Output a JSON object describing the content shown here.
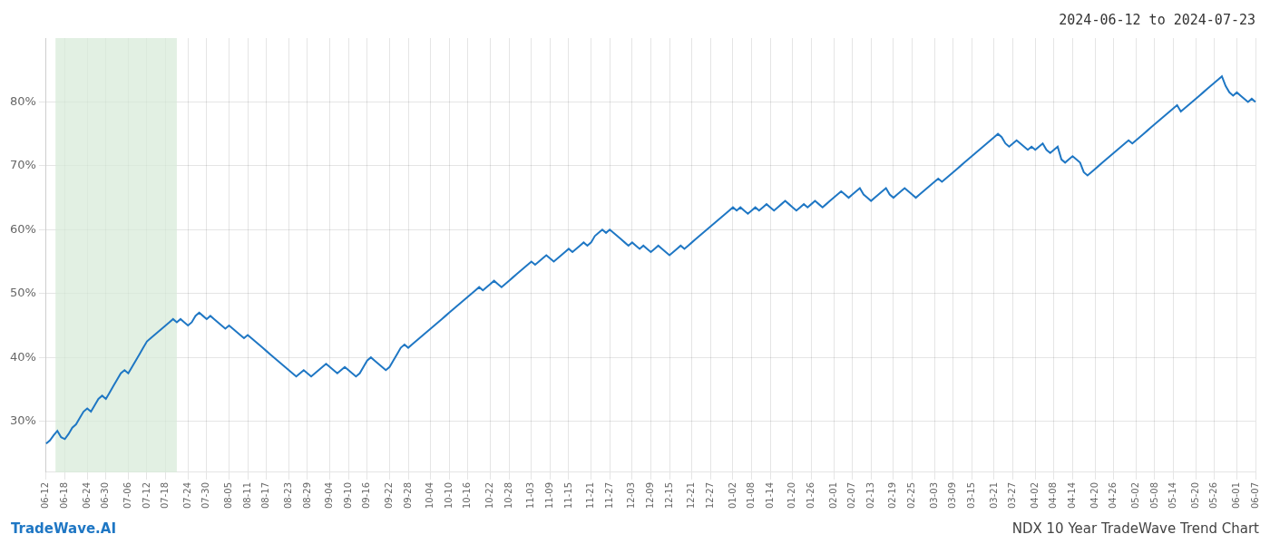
{
  "chart_data": {
    "type": "line",
    "title": "2024-06-12 to 2024-07-23",
    "annotations": [
      {
        "text": "TradeWave.AI",
        "color": "#1f77c4"
      },
      {
        "text": "NDX 10 Year TradeWave Trend Chart",
        "color": "#444444"
      }
    ],
    "color": "#1f77c4",
    "grid": true,
    "ylim": [
      22,
      90
    ],
    "yticks": [
      {
        "value": 30,
        "label": "30%"
      },
      {
        "value": 40,
        "label": "40%"
      },
      {
        "value": 50,
        "label": "50%"
      },
      {
        "value": 60,
        "label": "60%"
      },
      {
        "value": 70,
        "label": "70%"
      },
      {
        "value": 80,
        "label": "80%"
      }
    ],
    "shade": {
      "from": "06-18",
      "to": "07-18",
      "color": "#d6ead7"
    },
    "categories": [
      "06-12",
      null,
      null,
      null,
      null,
      "06-18",
      null,
      null,
      null,
      null,
      null,
      "06-24",
      null,
      null,
      null,
      null,
      "06-30",
      null,
      null,
      null,
      null,
      null,
      "07-06",
      null,
      null,
      null,
      null,
      "07-12",
      null,
      null,
      null,
      null,
      "07-18",
      null,
      null,
      null,
      null,
      null,
      "07-24",
      null,
      null,
      null,
      null,
      "07-30",
      null,
      null,
      null,
      null,
      null,
      "08-05",
      null,
      null,
      null,
      null,
      "08-11",
      null,
      null,
      null,
      null,
      "08-17",
      null,
      null,
      null,
      null,
      null,
      "08-23",
      null,
      null,
      null,
      null,
      "08-29",
      null,
      null,
      null,
      null,
      null,
      "09-04",
      null,
      null,
      null,
      null,
      "09-10",
      null,
      null,
      null,
      null,
      "09-16",
      null,
      null,
      null,
      null,
      null,
      "09-22",
      null,
      null,
      null,
      null,
      "09-28",
      null,
      null,
      null,
      null,
      null,
      "10-04",
      null,
      null,
      null,
      null,
      "10-10",
      null,
      null,
      null,
      null,
      "10-16",
      null,
      null,
      null,
      null,
      null,
      "10-22",
      null,
      null,
      null,
      null,
      "10-28",
      null,
      null,
      null,
      null,
      null,
      "11-03",
      null,
      null,
      null,
      null,
      "11-09",
      null,
      null,
      null,
      null,
      "11-15",
      null,
      null,
      null,
      null,
      null,
      "11-21",
      null,
      null,
      null,
      null,
      "11-27",
      null,
      null,
      null,
      null,
      null,
      "12-03",
      null,
      null,
      null,
      null,
      "12-09",
      null,
      null,
      null,
      null,
      "12-15",
      null,
      null,
      null,
      null,
      null,
      "12-21",
      null,
      null,
      null,
      null,
      "12-27",
      null,
      null,
      null,
      null,
      null,
      "01-02",
      null,
      null,
      null,
      null,
      "01-08",
      null,
      null,
      null,
      null,
      "01-14",
      null,
      null,
      null,
      null,
      null,
      "01-20",
      null,
      null,
      null,
      null,
      "01-26",
      null,
      null,
      null,
      null,
      null,
      "02-01",
      null,
      null,
      null,
      null,
      "02-07",
      null,
      null,
      null,
      null,
      "02-13",
      null,
      null,
      null,
      null,
      null,
      "02-19",
      null,
      null,
      null,
      null,
      "02-25",
      null,
      null,
      null,
      null,
      null,
      "03-03",
      null,
      null,
      null,
      null,
      "03-09",
      null,
      null,
      null,
      null,
      "03-15",
      null,
      null,
      null,
      null,
      null,
      "03-21",
      null,
      null,
      null,
      null,
      "03-27",
      null,
      null,
      null,
      null,
      null,
      "04-02",
      null,
      null,
      null,
      null,
      "04-08",
      null,
      null,
      null,
      null,
      "04-14",
      null,
      null,
      null,
      null,
      null,
      "04-20",
      null,
      null,
      null,
      null,
      "04-26",
      null,
      null,
      null,
      null,
      null,
      "05-02",
      null,
      null,
      null,
      null,
      "05-08",
      null,
      null,
      null,
      null,
      "05-14",
      null,
      null,
      null,
      null,
      null,
      "05-20",
      null,
      null,
      null,
      null,
      "05-26",
      null,
      null,
      null,
      null,
      null,
      "06-01",
      null,
      null,
      null,
      null,
      "06-07"
    ],
    "values": [
      26.5,
      27.0,
      27.8,
      28.5,
      27.5,
      27.2,
      28.0,
      29.0,
      29.5,
      30.5,
      31.5,
      32.0,
      31.5,
      32.5,
      33.5,
      34.0,
      33.5,
      34.5,
      35.5,
      36.5,
      37.5,
      38.0,
      37.5,
      38.5,
      39.5,
      40.5,
      41.5,
      42.5,
      43.0,
      43.5,
      44.0,
      44.5,
      45.0,
      45.5,
      46.0,
      45.5,
      46.0,
      45.5,
      45.0,
      45.5,
      46.5,
      47.0,
      46.5,
      46.0,
      46.5,
      46.0,
      45.5,
      45.0,
      44.5,
      45.0,
      44.5,
      44.0,
      43.5,
      43.0,
      43.5,
      43.0,
      42.5,
      42.0,
      41.5,
      41.0,
      40.5,
      40.0,
      39.5,
      39.0,
      38.5,
      38.0,
      37.5,
      37.0,
      37.5,
      38.0,
      37.5,
      37.0,
      37.5,
      38.0,
      38.5,
      39.0,
      38.5,
      38.0,
      37.5,
      38.0,
      38.5,
      38.0,
      37.5,
      37.0,
      37.5,
      38.5,
      39.5,
      40.0,
      39.5,
      39.0,
      38.5,
      38.0,
      38.5,
      39.5,
      40.5,
      41.5,
      42.0,
      41.5,
      42.0,
      42.5,
      43.0,
      43.5,
      44.0,
      44.5,
      45.0,
      45.5,
      46.0,
      46.5,
      47.0,
      47.5,
      48.0,
      48.5,
      49.0,
      49.5,
      50.0,
      50.5,
      51.0,
      50.5,
      51.0,
      51.5,
      52.0,
      51.5,
      51.0,
      51.5,
      52.0,
      52.5,
      53.0,
      53.5,
      54.0,
      54.5,
      55.0,
      54.5,
      55.0,
      55.5,
      56.0,
      55.5,
      55.0,
      55.5,
      56.0,
      56.5,
      57.0,
      56.5,
      57.0,
      57.5,
      58.0,
      57.5,
      58.0,
      59.0,
      59.5,
      60.0,
      59.5,
      60.0,
      59.5,
      59.0,
      58.5,
      58.0,
      57.5,
      58.0,
      57.5,
      57.0,
      57.5,
      57.0,
      56.5,
      57.0,
      57.5,
      57.0,
      56.5,
      56.0,
      56.5,
      57.0,
      57.5,
      57.0,
      57.5,
      58.0,
      58.5,
      59.0,
      59.5,
      60.0,
      60.5,
      61.0,
      61.5,
      62.0,
      62.5,
      63.0,
      63.5,
      63.0,
      63.5,
      63.0,
      62.5,
      63.0,
      63.5,
      63.0,
      63.5,
      64.0,
      63.5,
      63.0,
      63.5,
      64.0,
      64.5,
      64.0,
      63.5,
      63.0,
      63.5,
      64.0,
      63.5,
      64.0,
      64.5,
      64.0,
      63.5,
      64.0,
      64.5,
      65.0,
      65.5,
      66.0,
      65.5,
      65.0,
      65.5,
      66.0,
      66.5,
      65.5,
      65.0,
      64.5,
      65.0,
      65.5,
      66.0,
      66.5,
      65.5,
      65.0,
      65.5,
      66.0,
      66.5,
      66.0,
      65.5,
      65.0,
      65.5,
      66.0,
      66.5,
      67.0,
      67.5,
      68.0,
      67.5,
      68.0,
      68.5,
      69.0,
      69.5,
      70.0,
      70.5,
      71.0,
      71.5,
      72.0,
      72.5,
      73.0,
      73.5,
      74.0,
      74.5,
      75.0,
      74.5,
      73.5,
      73.0,
      73.5,
      74.0,
      73.5,
      73.0,
      72.5,
      73.0,
      72.5,
      73.0,
      73.5,
      72.5,
      72.0,
      72.5,
      73.0,
      71.0,
      70.5,
      71.0,
      71.5,
      71.0,
      70.5,
      69.0,
      68.5,
      69.0,
      69.5,
      70.0,
      70.5,
      71.0,
      71.5,
      72.0,
      72.5,
      73.0,
      73.5,
      74.0,
      73.5,
      74.0,
      74.5,
      75.0,
      75.5,
      76.0,
      76.5,
      77.0,
      77.5,
      78.0,
      78.5,
      79.0,
      79.5,
      78.5,
      79.0,
      79.5,
      80.0,
      80.5,
      81.0,
      81.5,
      82.0,
      82.5,
      83.0,
      83.5,
      84.0,
      82.5,
      81.5,
      81.0,
      81.5,
      81.0,
      80.5,
      80.0,
      80.5,
      80.0
    ]
  }
}
